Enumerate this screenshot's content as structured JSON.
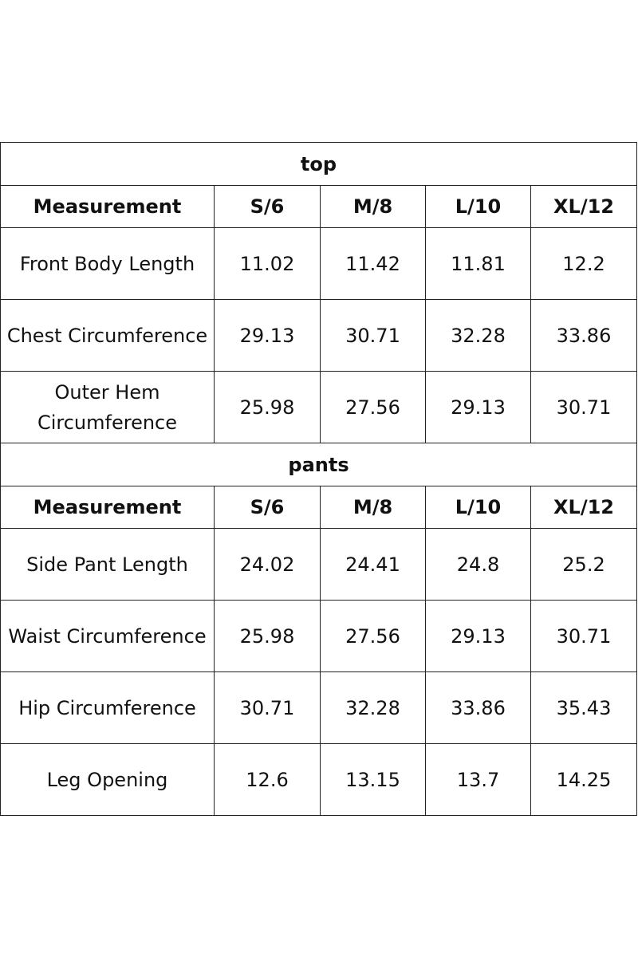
{
  "sections": [
    {
      "title": "top",
      "header": [
        "Measurement",
        "S/6",
        "M/8",
        "L/10",
        "XL/12"
      ],
      "rows": [
        [
          "Front Body Length",
          "11.02",
          "11.42",
          "11.81",
          "12.2"
        ],
        [
          "Chest Circumference",
          "29.13",
          "30.71",
          "32.28",
          "33.86"
        ],
        [
          "Outer Hem Circumference",
          "25.98",
          "27.56",
          "29.13",
          "30.71"
        ]
      ]
    },
    {
      "title": "pants",
      "header": [
        "Measurement",
        "S/6",
        "M/8",
        "L/10",
        "XL/12"
      ],
      "rows": [
        [
          "Side Pant Length",
          "24.02",
          "24.41",
          "24.8",
          "25.2"
        ],
        [
          "Waist Circumference",
          "25.98",
          "27.56",
          "29.13",
          "30.71"
        ],
        [
          "Hip Circumference",
          "30.71",
          "32.28",
          "33.86",
          "35.43"
        ],
        [
          "Leg Opening",
          "12.6",
          "13.15",
          "13.7",
          "14.25"
        ]
      ]
    }
  ]
}
